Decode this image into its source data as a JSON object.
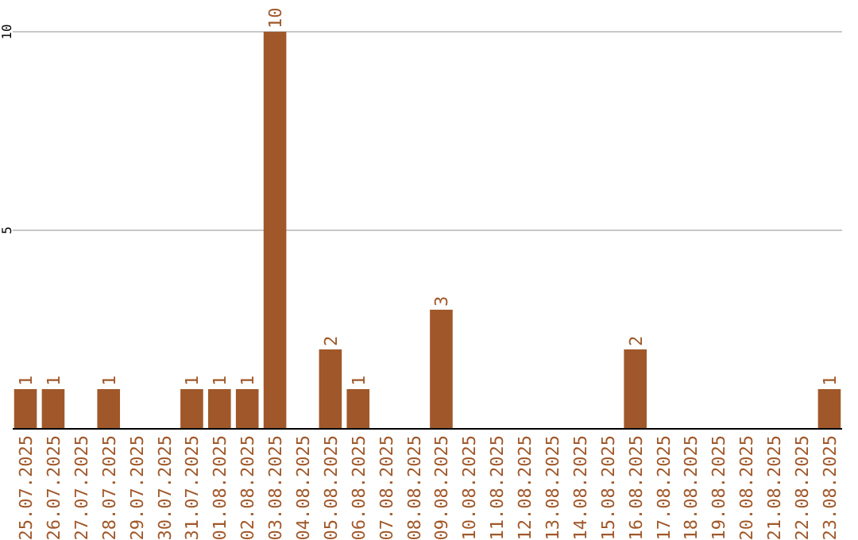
{
  "chart_data": {
    "type": "bar",
    "categories": [
      "25.07.2025",
      "26.07.2025",
      "27.07.2025",
      "28.07.2025",
      "29.07.2025",
      "30.07.2025",
      "31.07.2025",
      "01.08.2025",
      "02.08.2025",
      "03.08.2025",
      "04.08.2025",
      "05.08.2025",
      "06.08.2025",
      "07.08.2025",
      "08.08.2025",
      "09.08.2025",
      "10.08.2025",
      "11.08.2025",
      "12.08.2025",
      "13.08.2025",
      "14.08.2025",
      "15.08.2025",
      "16.08.2025",
      "17.08.2025",
      "18.08.2025",
      "19.08.2025",
      "20.08.2025",
      "21.08.2025",
      "22.08.2025",
      "23.08.2025"
    ],
    "values": [
      1,
      1,
      0,
      1,
      0,
      0,
      1,
      1,
      1,
      10,
      0,
      2,
      1,
      0,
      0,
      3,
      0,
      0,
      0,
      0,
      0,
      0,
      2,
      0,
      0,
      0,
      0,
      0,
      0,
      1
    ],
    "value_labels": [
      "1",
      "1",
      null,
      "1",
      null,
      null,
      "1",
      "1",
      "1",
      "10",
      null,
      "2",
      "1",
      null,
      null,
      "3",
      null,
      null,
      null,
      null,
      null,
      null,
      "2",
      null,
      null,
      null,
      null,
      null,
      null,
      "1"
    ],
    "color": "#a0582a",
    "ylim": [
      0,
      10
    ],
    "yticks": [
      {
        "value": 0,
        "label": null
      },
      5,
      10
    ],
    "grid": "y"
  }
}
